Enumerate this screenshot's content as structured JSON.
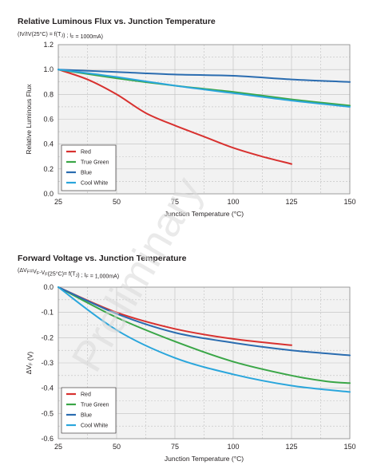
{
  "watermark": "Preliminary",
  "colors": {
    "Red": "#d8312f",
    "True Green": "#3aa647",
    "Blue": "#2a6cb0",
    "Cool White": "#2aa6dc",
    "grid": "#bfbfbf",
    "plot_bg": "#f2f2f2"
  },
  "chart_data": [
    {
      "type": "line",
      "title": "Relative Luminous Flux vs. Junction Temperature",
      "subtitle": "(IV/IV(25°C) = f(T_J) ; I_F = 1000mA)",
      "xlabel": "Junction Temperature (°C)",
      "ylabel": "Relative Luminous Flux",
      "xlim": [
        25,
        150
      ],
      "ylim": [
        0,
        1.2
      ],
      "x_ticks": [
        "25",
        "50",
        "75",
        "100",
        "125",
        "150"
      ],
      "y_ticks": [
        "0.0",
        "0.2",
        "0.4",
        "0.6",
        "0.8",
        "1.0",
        "1.2"
      ],
      "grid": true,
      "legend_position": "bottom-left",
      "series": [
        {
          "name": "Red",
          "x": [
            25,
            37.5,
            50,
            62.5,
            75,
            87.5,
            100,
            112.5,
            125
          ],
          "y": [
            1.0,
            0.92,
            0.8,
            0.65,
            0.55,
            0.46,
            0.37,
            0.3,
            0.24
          ]
        },
        {
          "name": "True Green",
          "x": [
            25,
            50,
            75,
            100,
            125,
            150
          ],
          "y": [
            1.0,
            0.93,
            0.87,
            0.82,
            0.76,
            0.71
          ]
        },
        {
          "name": "Blue",
          "x": [
            25,
            50,
            75,
            100,
            125,
            150
          ],
          "y": [
            1.0,
            0.98,
            0.96,
            0.95,
            0.92,
            0.9
          ]
        },
        {
          "name": "Cool White",
          "x": [
            25,
            50,
            75,
            100,
            125,
            150
          ],
          "y": [
            1.0,
            0.94,
            0.87,
            0.81,
            0.75,
            0.7
          ]
        }
      ]
    },
    {
      "type": "line",
      "title": "Forward Voltage vs. Junction Temperature",
      "subtitle": "(ΔV_F=V_F-V_F(25°C)= f(T_J) ; I_F = 1,000mA)",
      "xlabel": "Junction Temperature (°C)",
      "ylabel": "ΔV_F (V)",
      "xlim": [
        25,
        150
      ],
      "ylim": [
        -0.6,
        0
      ],
      "x_ticks": [
        "25",
        "50",
        "75",
        "100",
        "125",
        "150"
      ],
      "y_ticks": [
        "0.0",
        "-0.1",
        "-0.2",
        "-0.3",
        "-0.4",
        "-0.5",
        "-0.6"
      ],
      "grid": true,
      "legend_position": "bottom-left",
      "series": [
        {
          "name": "Red",
          "x": [
            25,
            50,
            75,
            100,
            125
          ],
          "y": [
            0,
            -0.1,
            -0.165,
            -0.205,
            -0.23
          ]
        },
        {
          "name": "True Green",
          "x": [
            25,
            50,
            75,
            100,
            125,
            140,
            150
          ],
          "y": [
            0,
            -0.12,
            -0.215,
            -0.295,
            -0.35,
            -0.373,
            -0.38
          ]
        },
        {
          "name": "Blue",
          "x": [
            25,
            50,
            75,
            100,
            125,
            150
          ],
          "y": [
            0,
            -0.105,
            -0.18,
            -0.22,
            -0.25,
            -0.27
          ]
        },
        {
          "name": "Cool White",
          "x": [
            25,
            50,
            75,
            100,
            125,
            150
          ],
          "y": [
            0,
            -0.17,
            -0.28,
            -0.345,
            -0.39,
            -0.415
          ]
        }
      ]
    }
  ]
}
